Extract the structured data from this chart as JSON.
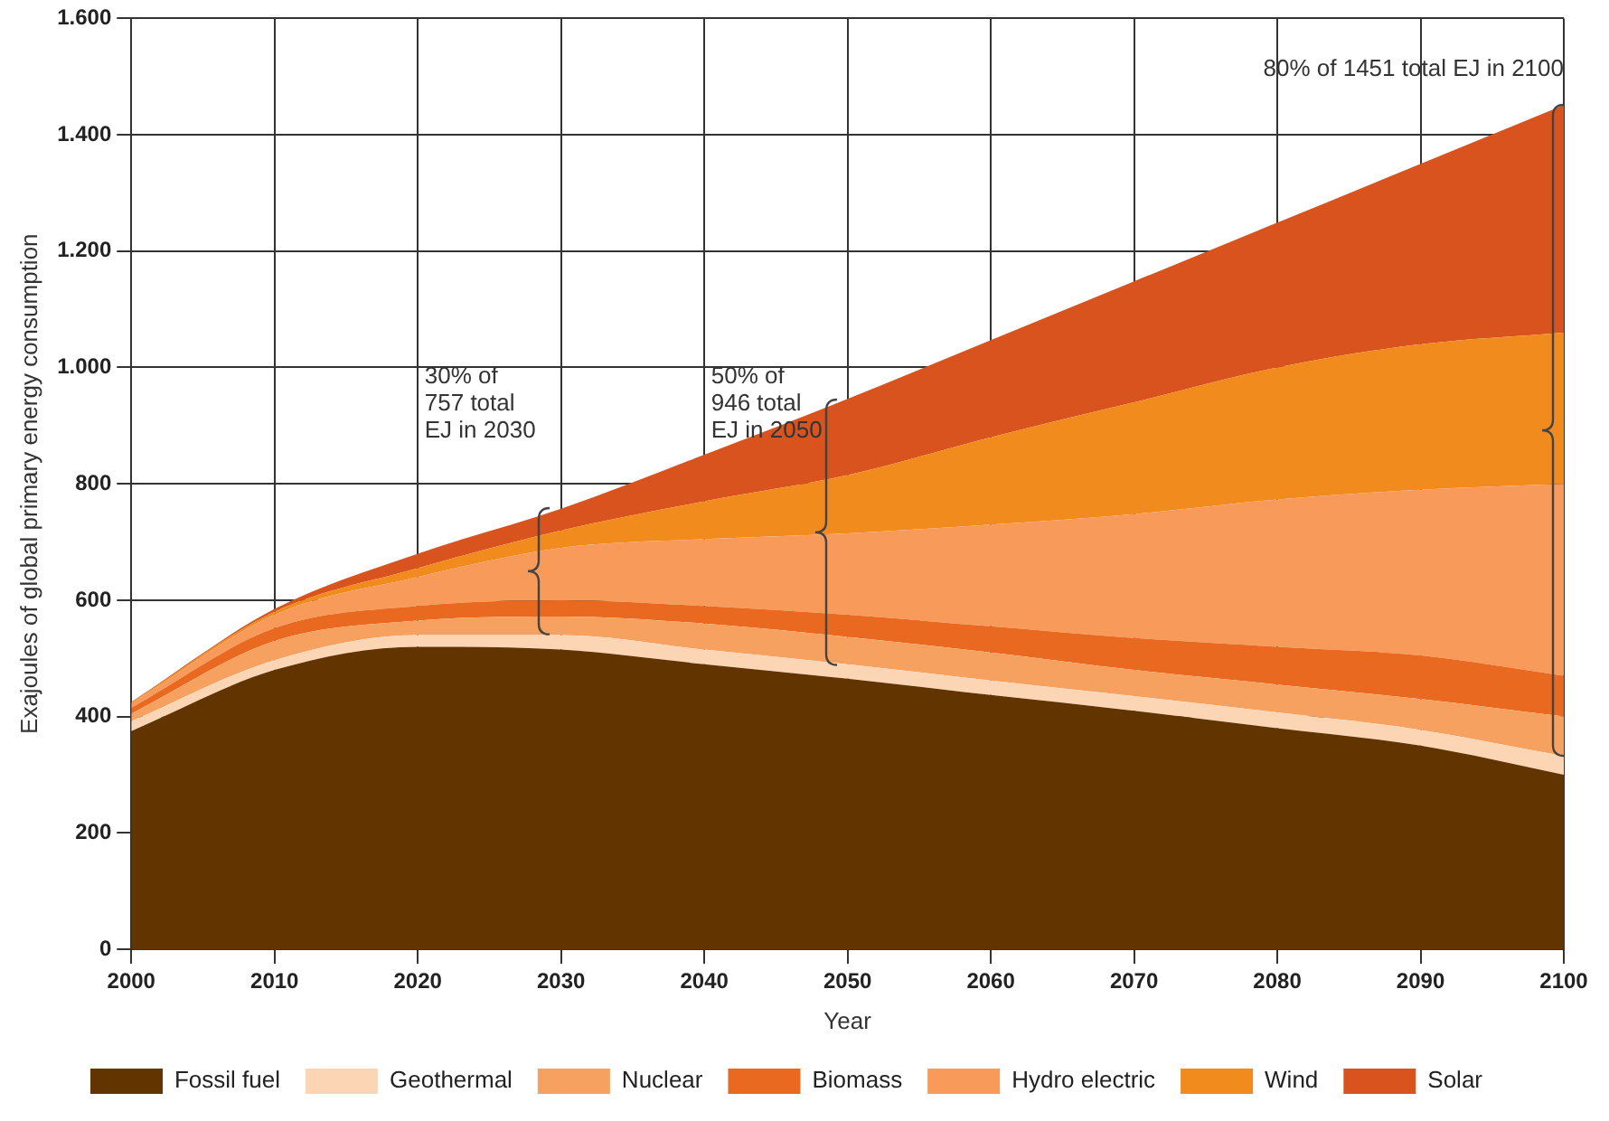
{
  "chart_data": {
    "type": "area",
    "stacked": true,
    "xlabel": "Year",
    "ylabel": "Exajoules of global primary energy consumption",
    "x": [
      2000,
      2010,
      2020,
      2030,
      2040,
      2050,
      2060,
      2070,
      2080,
      2090,
      2100
    ],
    "xlim": [
      2000,
      2100
    ],
    "xticks": [
      2000,
      2010,
      2020,
      2030,
      2040,
      2050,
      2060,
      2070,
      2080,
      2090,
      2100
    ],
    "ylim": [
      0,
      1600
    ],
    "yticks": [
      0,
      200,
      400,
      600,
      800,
      {
        "value": 1000,
        "label": "1.000"
      },
      {
        "value": 1200,
        "label": "1.200"
      },
      {
        "value": 1400,
        "label": "1.400"
      },
      {
        "value": 1600,
        "label": "1.600"
      }
    ],
    "grid": true,
    "legend": "bottom",
    "series": [
      {
        "name": "Fossil fuel",
        "color": "#623400",
        "values": [
          375,
          480,
          520,
          515,
          490,
          465,
          437,
          410,
          380,
          350,
          300
        ]
      },
      {
        "name": "Geothermal",
        "color": "#fcd5b5",
        "values": [
          17,
          17,
          20,
          25,
          25,
          25,
          25,
          25,
          27,
          27,
          32
        ]
      },
      {
        "name": "Nuclear",
        "color": "#f6a160",
        "values": [
          13,
          33,
          25,
          32,
          45,
          47,
          48,
          45,
          48,
          53,
          68
        ]
      },
      {
        "name": "Biomass",
        "color": "#e8691f",
        "values": [
          10,
          22,
          25,
          28,
          30,
          38,
          45,
          55,
          65,
          75,
          70
        ]
      },
      {
        "name": "Hydro electric",
        "color": "#f79a5a",
        "values": [
          7,
          23,
          50,
          90,
          115,
          140,
          175,
          213,
          253,
          285,
          330
        ]
      },
      {
        "name": "Wind",
        "color": "#f28b1d",
        "values": [
          2,
          5,
          15,
          30,
          65,
          100,
          150,
          192,
          227,
          250,
          260
        ]
      },
      {
        "name": "Solar",
        "color": "#d9531e",
        "values": [
          1,
          5,
          25,
          37,
          80,
          131,
          167,
          208,
          249,
          310,
          391
        ]
      }
    ],
    "annotations": [
      {
        "text": "30% of\n757 total\nEJ in 2030",
        "x": 2030,
        "y": 757
      },
      {
        "text": "50% of\n946 total\nEJ in 2050",
        "x": 2050,
        "y": 946
      },
      {
        "text": "80% of 1451 total EJ in 2100",
        "x": 2100,
        "y": 1451
      }
    ]
  }
}
